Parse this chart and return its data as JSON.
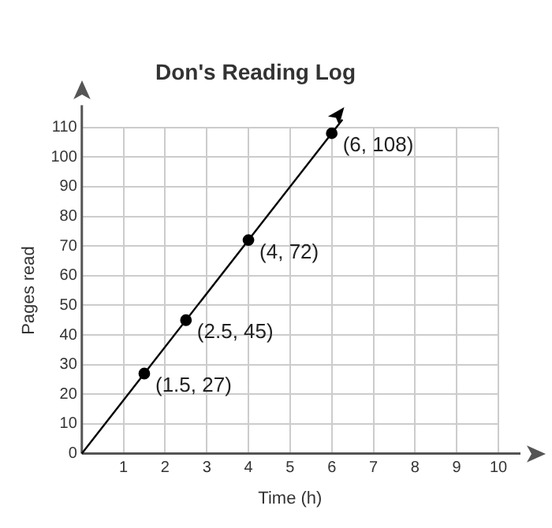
{
  "chart_data": {
    "type": "scatter",
    "title": "Don's Reading Log",
    "xlabel": "Time (h)",
    "ylabel": "Pages read",
    "series": [
      {
        "type": "scatter",
        "color": "#000000",
        "x": [
          1.5,
          2.5,
          4,
          6
        ],
        "values": [
          27,
          45,
          72,
          108
        ],
        "marker": "circle"
      }
    ],
    "annotations": [
      {
        "text": "(1.5, 27)",
        "x": 1.5,
        "y": 27
      },
      {
        "text": "(2.5, 45)",
        "x": 2.5,
        "y": 45
      },
      {
        "text": "(4, 72)",
        "x": 4,
        "y": 72
      },
      {
        "text": "(6, 108)",
        "x": 6,
        "y": 108
      }
    ],
    "xlim": [
      0,
      10
    ],
    "xticks": [
      {
        "value": 0,
        "label": null
      },
      1,
      2,
      3,
      4,
      5,
      6,
      7,
      8,
      9,
      10
    ],
    "ylim": [
      0,
      110
    ],
    "yticks": [
      0,
      10,
      20,
      30,
      40,
      50,
      60,
      70,
      80,
      90,
      100,
      110
    ],
    "grid": true
  }
}
